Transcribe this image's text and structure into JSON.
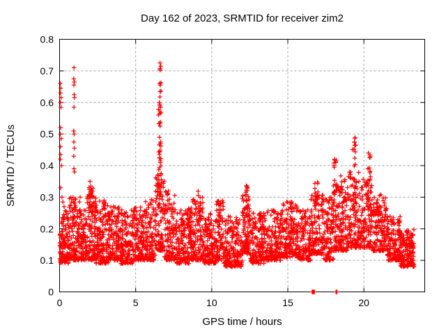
{
  "chart_data": {
    "type": "scatter",
    "title": "Day 162 of 2023, SRMTID for receiver zim2",
    "xlabel": "GPS time / hours",
    "ylabel": "SRMTID / TECUs",
    "xlim": [
      0,
      24
    ],
    "ylim": [
      0,
      0.8
    ],
    "xtick_values": [
      0,
      5,
      10,
      15,
      20
    ],
    "xtick_labels": [
      "0",
      "5",
      "10",
      "15",
      "20"
    ],
    "ytick_values": [
      0,
      0.1,
      0.2,
      0.3,
      0.4,
      0.5,
      0.6,
      0.7,
      0.8
    ],
    "ytick_labels": [
      "0",
      "0.1",
      "0.2",
      "0.3",
      "0.4",
      "0.5",
      "0.6",
      "0.7",
      "0.8"
    ],
    "grid": true,
    "grid_style": "dashed",
    "legend": null,
    "marker": "plus",
    "colors": {
      "points": "#ff0000",
      "grid": "#9c9c9c",
      "axis": "#000000",
      "background": "#ffffff"
    },
    "seed": 1620231,
    "description": "Dense scatter of 30-s SRMTID values vs GPS time. Background band ~0.09-0.26 TECU all day; spikes near hour 0 (to 0.66), hour 1 (to 0.71), hour 6.6 (to 0.72), hour 9.2 (0.32), hour 12.3 (0.34), and an active period hours 17-21 with peaks 0.42-0.49; isolated zero values near hours 16.7 and 18.2; data end ~23.3 h.",
    "band_segments": [
      [
        0.0,
        0.6,
        0.09,
        0.26,
        110
      ],
      [
        0.6,
        1.2,
        0.1,
        0.3,
        100
      ],
      [
        1.2,
        1.8,
        0.1,
        0.26,
        100
      ],
      [
        1.8,
        2.4,
        0.1,
        0.33,
        110
      ],
      [
        2.4,
        3.2,
        0.09,
        0.29,
        130
      ],
      [
        3.2,
        4.0,
        0.1,
        0.27,
        130
      ],
      [
        4.0,
        4.8,
        0.09,
        0.26,
        130
      ],
      [
        4.8,
        5.6,
        0.1,
        0.27,
        130
      ],
      [
        5.6,
        6.3,
        0.1,
        0.3,
        110
      ],
      [
        6.3,
        6.9,
        0.13,
        0.38,
        100
      ],
      [
        6.9,
        7.6,
        0.1,
        0.33,
        110
      ],
      [
        7.6,
        8.6,
        0.09,
        0.26,
        150
      ],
      [
        8.6,
        9.5,
        0.1,
        0.3,
        140
      ],
      [
        9.5,
        10.3,
        0.09,
        0.25,
        130
      ],
      [
        10.3,
        10.8,
        0.1,
        0.29,
        80
      ],
      [
        10.8,
        12.0,
        0.08,
        0.24,
        180
      ],
      [
        12.0,
        12.5,
        0.12,
        0.32,
        90
      ],
      [
        12.5,
        13.5,
        0.09,
        0.25,
        150
      ],
      [
        13.5,
        14.6,
        0.1,
        0.26,
        160
      ],
      [
        14.6,
        15.6,
        0.11,
        0.29,
        150
      ],
      [
        15.6,
        16.5,
        0.1,
        0.26,
        130
      ],
      [
        16.5,
        17.3,
        0.12,
        0.33,
        120
      ],
      [
        17.3,
        18.0,
        0.1,
        0.3,
        110
      ],
      [
        18.0,
        18.9,
        0.13,
        0.34,
        130
      ],
      [
        18.9,
        19.7,
        0.14,
        0.38,
        120
      ],
      [
        19.7,
        20.6,
        0.14,
        0.36,
        130
      ],
      [
        20.6,
        21.5,
        0.13,
        0.3,
        130
      ],
      [
        21.5,
        22.4,
        0.1,
        0.24,
        140
      ],
      [
        22.4,
        23.3,
        0.08,
        0.2,
        150
      ]
    ],
    "spike_columns": [
      [
        6.58,
        0.18,
        0.3,
        0.6,
        26
      ],
      [
        6.62,
        0.1,
        0.55,
        0.72,
        8
      ],
      [
        2.05,
        0.28,
        0.25,
        0.35,
        12
      ],
      [
        3.0,
        0.22,
        0.24,
        0.3,
        8
      ],
      [
        9.2,
        0.2,
        0.22,
        0.32,
        12
      ],
      [
        10.55,
        0.18,
        0.22,
        0.3,
        8
      ],
      [
        12.25,
        0.22,
        0.22,
        0.34,
        14
      ],
      [
        8.5,
        0.18,
        0.2,
        0.27,
        6
      ],
      [
        13.2,
        0.18,
        0.2,
        0.26,
        6
      ],
      [
        14.6,
        0.18,
        0.2,
        0.27,
        6
      ],
      [
        15.2,
        0.18,
        0.22,
        0.29,
        8
      ],
      [
        16.9,
        0.28,
        0.28,
        0.35,
        12
      ],
      [
        18.1,
        0.22,
        0.28,
        0.42,
        16
      ],
      [
        18.6,
        0.32,
        0.25,
        0.37,
        14
      ],
      [
        19.35,
        0.22,
        0.3,
        0.49,
        16
      ],
      [
        20.35,
        0.22,
        0.28,
        0.44,
        14
      ],
      [
        21.0,
        0.28,
        0.22,
        0.31,
        10
      ]
    ],
    "outlier_points": [
      [
        0.05,
        0.66
      ],
      [
        0.08,
        0.645
      ],
      [
        0.06,
        0.63
      ],
      [
        0.1,
        0.615
      ],
      [
        0.05,
        0.6
      ],
      [
        0.09,
        0.585
      ],
      [
        0.07,
        0.52
      ],
      [
        0.05,
        0.5
      ],
      [
        0.1,
        0.485
      ],
      [
        0.06,
        0.46
      ],
      [
        0.08,
        0.435
      ],
      [
        0.05,
        0.42
      ],
      [
        0.12,
        0.4
      ],
      [
        0.07,
        0.33
      ],
      [
        0.15,
        0.3
      ],
      [
        0.22,
        0.285
      ],
      [
        0.3,
        0.27
      ],
      [
        0.95,
        0.71
      ],
      [
        0.93,
        0.675
      ],
      [
        0.97,
        0.665
      ],
      [
        0.94,
        0.655
      ],
      [
        0.96,
        0.625
      ],
      [
        0.98,
        0.615
      ],
      [
        0.95,
        0.585
      ],
      [
        0.92,
        0.51
      ],
      [
        0.96,
        0.5
      ],
      [
        0.94,
        0.475
      ],
      [
        0.97,
        0.455
      ],
      [
        0.93,
        0.43
      ],
      [
        0.95,
        0.39
      ],
      [
        0.98,
        0.38
      ],
      [
        1.35,
        0.3
      ],
      [
        1.3,
        0.285
      ],
      [
        2.0,
        0.35
      ],
      [
        2.05,
        0.335
      ],
      [
        1.95,
        0.325
      ],
      [
        6.6,
        0.725
      ],
      [
        6.65,
        0.715
      ],
      [
        6.58,
        0.66
      ],
      [
        6.62,
        0.655
      ],
      [
        6.6,
        0.635
      ],
      [
        6.56,
        0.6
      ],
      [
        6.63,
        0.585
      ],
      [
        6.59,
        0.565
      ],
      [
        6.61,
        0.525
      ],
      [
        6.57,
        0.49
      ],
      [
        6.64,
        0.475
      ],
      [
        6.6,
        0.445
      ],
      [
        6.55,
        0.425
      ],
      [
        6.62,
        0.41
      ],
      [
        19.4,
        0.487
      ],
      [
        19.38,
        0.475
      ],
      [
        19.42,
        0.465
      ],
      [
        19.35,
        0.452
      ],
      [
        20.3,
        0.44
      ],
      [
        20.38,
        0.425
      ],
      [
        18.08,
        0.42
      ],
      [
        18.15,
        0.41
      ],
      [
        18.05,
        0.395
      ]
    ],
    "zero_points": [
      16.6,
      16.64,
      16.66,
      16.68,
      16.7,
      16.72,
      16.75,
      18.17,
      18.23
    ]
  }
}
